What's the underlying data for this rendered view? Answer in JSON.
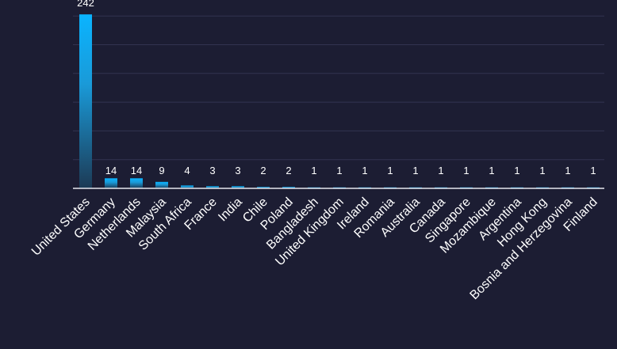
{
  "chart_data": {
    "type": "bar",
    "categories": [
      "United States",
      "Germany",
      "Netherlands",
      "Malaysia",
      "South Africa",
      "France",
      "India",
      "Chile",
      "Poland",
      "Bangladesh",
      "United Kingdom",
      "Ireland",
      "Romania",
      "Australia",
      "Canada",
      "Singapore",
      "Mozambique",
      "Argentina",
      "Hong Kong",
      "Bosnia and Herzegovina",
      "Finland"
    ],
    "values": [
      242,
      14,
      14,
      9,
      4,
      3,
      3,
      2,
      2,
      1,
      1,
      1,
      1,
      1,
      1,
      1,
      1,
      1,
      1,
      1,
      1
    ],
    "title": "",
    "xlabel": "",
    "ylabel": "",
    "ylim": [
      0,
      240
    ],
    "grid": true,
    "legend": "none",
    "colors": {
      "background": "#1c1d33",
      "bar_top": "#0ab4ff",
      "bar_bottom": "#1c3a55",
      "gridline": "#323451",
      "axis": "#e7e8ef",
      "text": "#ffffff"
    }
  }
}
